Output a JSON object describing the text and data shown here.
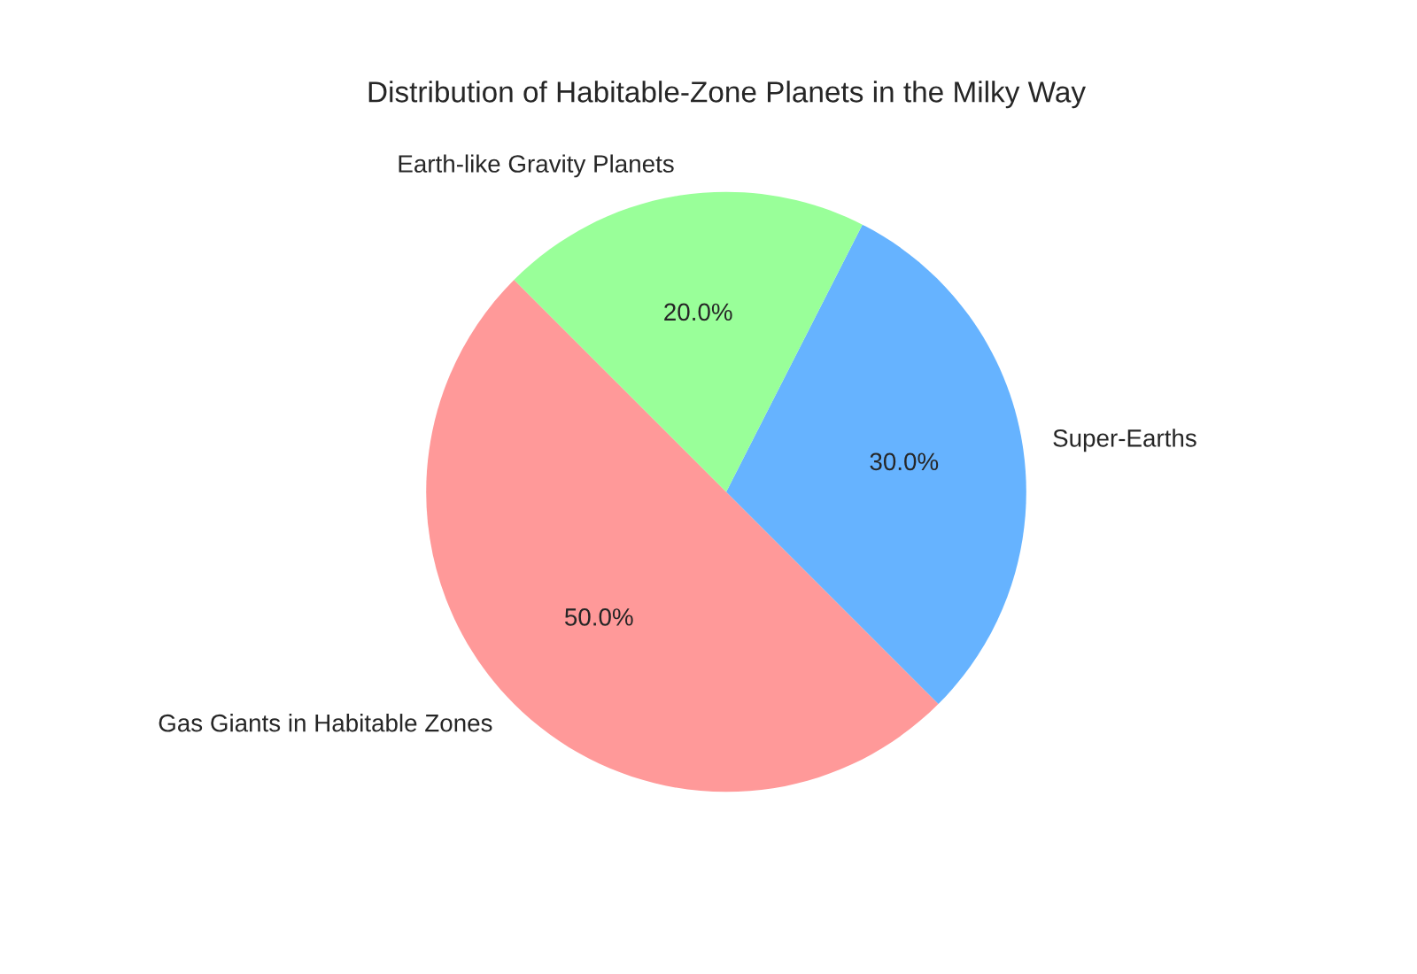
{
  "chart_data": {
    "type": "pie",
    "title": "Distribution of Habitable-Zone Planets in the Milky Way",
    "categories": [
      "Gas Giants in Habitable Zones",
      "Super-Earths",
      "Earth-like Gravity Planets"
    ],
    "values": [
      50,
      30,
      20
    ],
    "value_labels": [
      "50.0%",
      "30.0%",
      "20.0%"
    ],
    "colors": [
      "#ff9999",
      "#66b3ff",
      "#99ff99"
    ]
  }
}
